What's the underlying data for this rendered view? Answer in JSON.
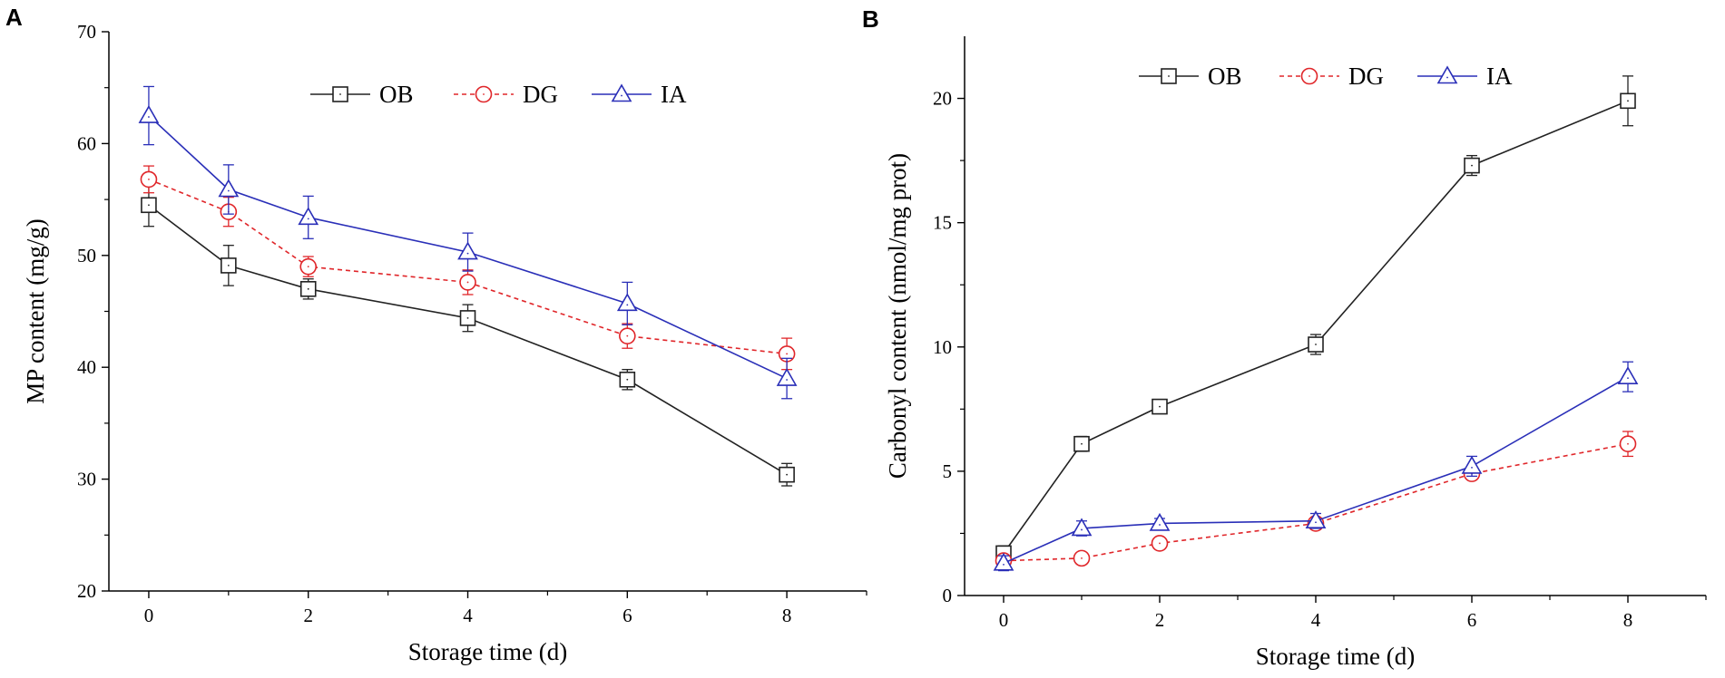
{
  "chart_data": [
    {
      "panel_label": "A",
      "type": "line",
      "title": "",
      "xlabel": "Storage time (d)",
      "ylabel": "MP content (mg/g)",
      "x": [
        0,
        1,
        2,
        4,
        6,
        8
      ],
      "xlim": [
        -0.5,
        9
      ],
      "ylim": [
        20,
        70
      ],
      "xticks": [
        0,
        2,
        4,
        6,
        8
      ],
      "yticks": [
        20,
        30,
        40,
        50,
        60,
        70
      ],
      "xtick_labels": [
        "0",
        "2",
        "4",
        "6",
        "8"
      ],
      "ytick_labels": [
        "20",
        "30",
        "40",
        "50",
        "60",
        "70"
      ],
      "legend_position": "top-center",
      "series": [
        {
          "name": "OB",
          "marker": "square",
          "color": "#222222",
          "dash": "solid",
          "values": [
            54.5,
            49.1,
            47.0,
            44.4,
            38.9,
            30.4
          ],
          "errors": [
            1.9,
            1.8,
            0.9,
            1.2,
            0.9,
            1.0
          ]
        },
        {
          "name": "DG",
          "marker": "circle",
          "color": "#e0262a",
          "dash": "dashed",
          "values": [
            56.8,
            53.9,
            49.0,
            47.6,
            42.8,
            41.2
          ],
          "errors": [
            1.2,
            1.3,
            0.9,
            1.1,
            1.1,
            1.4
          ]
        },
        {
          "name": "IA",
          "marker": "triangle",
          "color": "#2a2fb8",
          "dash": "solid",
          "values": [
            62.5,
            55.9,
            53.4,
            50.3,
            45.7,
            39.0
          ],
          "errors": [
            2.6,
            2.2,
            1.9,
            1.7,
            1.9,
            1.8
          ]
        }
      ]
    },
    {
      "panel_label": "B",
      "type": "line",
      "title": "",
      "xlabel": "Storage time (d)",
      "ylabel": "Carbonyl content (nmol/mg prot)",
      "x": [
        0,
        1,
        2,
        4,
        6,
        8
      ],
      "xlim": [
        -0.5,
        9
      ],
      "ylim": [
        0,
        22.5
      ],
      "xticks": [
        0,
        2,
        4,
        6,
        8
      ],
      "yticks": [
        0,
        5,
        10,
        15,
        20
      ],
      "xtick_labels": [
        "0",
        "2",
        "4",
        "6",
        "8"
      ],
      "ytick_labels": [
        "0",
        "5",
        "10",
        "15",
        "20"
      ],
      "legend_position": "top-center",
      "series": [
        {
          "name": "OB",
          "marker": "square",
          "color": "#222222",
          "dash": "solid",
          "values": [
            1.7,
            6.1,
            7.6,
            10.1,
            17.3,
            19.9
          ],
          "errors": [
            0.3,
            0.3,
            0.2,
            0.4,
            0.4,
            1.0
          ]
        },
        {
          "name": "DG",
          "marker": "circle",
          "color": "#e0262a",
          "dash": "dashed",
          "values": [
            1.4,
            1.5,
            2.1,
            2.9,
            4.9,
            6.1
          ],
          "errors": [
            0.2,
            0.2,
            0.2,
            0.2,
            0.2,
            0.5
          ]
        },
        {
          "name": "IA",
          "marker": "triangle",
          "color": "#2a2fb8",
          "dash": "solid",
          "values": [
            1.3,
            2.7,
            2.9,
            3.0,
            5.2,
            8.8
          ],
          "errors": [
            0.3,
            0.3,
            0.2,
            0.3,
            0.4,
            0.6
          ]
        }
      ]
    }
  ]
}
